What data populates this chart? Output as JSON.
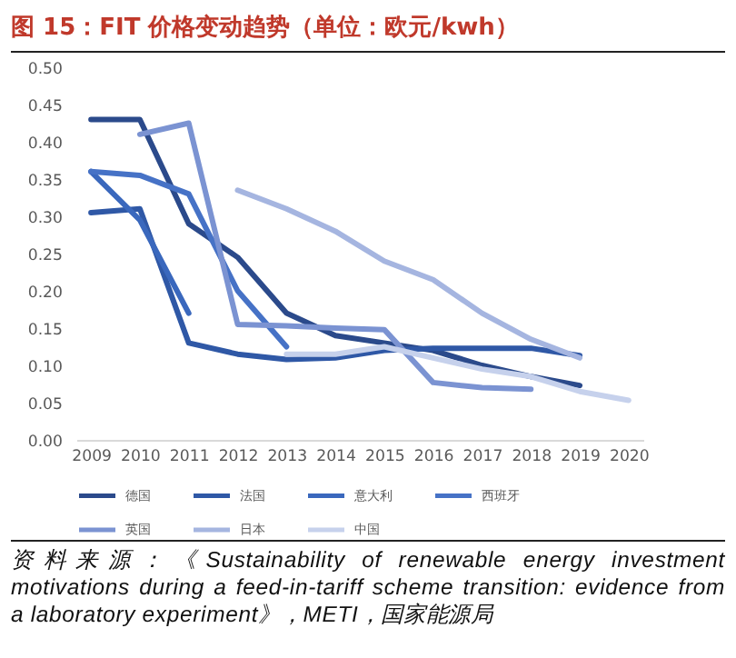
{
  "chart_data": {
    "type": "line",
    "title": "图 15：FIT 价格变动趋势（单位：欧元/kwh）",
    "categories": [
      "2009",
      "2010",
      "2011",
      "2012",
      "2013",
      "2014",
      "2015",
      "2016",
      "2017",
      "2018",
      "2019",
      "2020"
    ],
    "series": [
      {
        "name": "德国",
        "color": "#2b4a8b",
        "values": [
          0.43,
          0.43,
          0.29,
          0.245,
          0.17,
          0.14,
          0.13,
          0.12,
          0.1,
          0.085,
          0.073,
          null
        ]
      },
      {
        "name": "法国",
        "color": "#2f58a6",
        "values": [
          0.305,
          0.31,
          0.13,
          0.115,
          0.108,
          0.11,
          0.12,
          0.123,
          0.123,
          0.123,
          0.113,
          null
        ]
      },
      {
        "name": "意大利",
        "color": "#3a68bd",
        "values": [
          0.36,
          0.295,
          0.17,
          null,
          null,
          null,
          null,
          null,
          null,
          null,
          null,
          null
        ]
      },
      {
        "name": "西班牙",
        "color": "#4672c6",
        "values": [
          0.36,
          0.355,
          0.33,
          0.2,
          0.125,
          null,
          null,
          null,
          null,
          null,
          null,
          null
        ]
      },
      {
        "name": "英国",
        "color": "#7b93d2",
        "values": [
          null,
          0.41,
          0.425,
          0.155,
          0.153,
          0.15,
          0.148,
          0.077,
          0.07,
          0.068,
          null,
          null
        ]
      },
      {
        "name": "日本",
        "color": "#a5b5e0",
        "values": [
          null,
          null,
          null,
          0.335,
          0.31,
          0.28,
          0.24,
          0.215,
          0.17,
          0.135,
          0.11,
          null
        ]
      },
      {
        "name": "中国",
        "color": "#c6d1ec",
        "values": [
          null,
          null,
          null,
          null,
          0.115,
          0.115,
          0.125,
          0.11,
          0.095,
          0.085,
          0.065,
          0.053
        ]
      }
    ],
    "ylim": [
      0,
      0.5
    ],
    "yticks": [
      {
        "value": 0,
        "label": "0.00"
      },
      0.05,
      {
        "value": 0.1,
        "label": "0.10"
      },
      0.15,
      {
        "value": 0.2,
        "label": "0.20"
      },
      0.25,
      {
        "value": 0.3,
        "label": "0.30"
      },
      0.35,
      {
        "value": 0.4,
        "label": "0.40"
      },
      0.45,
      {
        "value": 0.5,
        "label": "0.50"
      }
    ],
    "grid": false,
    "legend": "bottom",
    "line_style": "solid",
    "marker": "none",
    "annotations": [
      "资料来源：《Sustainability of renewable energy investment motivations during a feed-in-tariff scheme transition: evidence from a laboratory experiment》，METI，国家能源局"
    ]
  }
}
